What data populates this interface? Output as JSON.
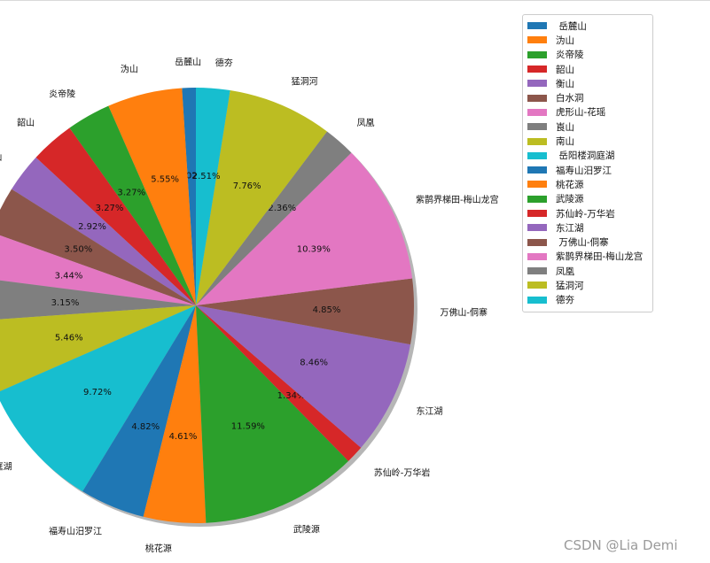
{
  "chart_data": {
    "type": "pie",
    "labels": [
      "岳麓山",
      "沩山",
      "炎帝陵",
      "韶山",
      "衡山",
      "白水洞",
      "虎形山-花瑶",
      "崀山",
      "南山",
      "岳阳楼洞庭湖",
      "福寿山汨罗江",
      "桃花源",
      "武陵源",
      "苏仙岭-万华岩",
      "东江湖",
      "万佛山-侗寨",
      "紫鹊界梯田-梅山龙宫",
      "凤凰",
      "猛洞河",
      "德夯"
    ],
    "legend_labels": [
      " 岳麓山",
      "沩山",
      "炎帝陵",
      "韶山",
      "衡山",
      "白水洞",
      "虎形山-花瑶",
      "崀山",
      "南山",
      " 岳阳楼洞庭湖",
      "福寿山汨罗江",
      "桃花源",
      "武陵源",
      "苏仙岭-万华岩",
      "东江湖",
      " 万佛山-侗寨",
      "紫鹊界梯田-梅山龙宫",
      "凤凰",
      "猛洞河",
      "德夯"
    ],
    "values": [
      1.02,
      5.55,
      3.27,
      3.27,
      2.92,
      3.5,
      3.44,
      3.15,
      5.46,
      9.72,
      4.82,
      4.61,
      11.59,
      1.34,
      8.46,
      4.85,
      10.39,
      2.36,
      7.76,
      2.51
    ],
    "pct_labels": [
      "1.02%",
      "5.55%",
      "3.27%",
      "3.27%",
      "2.92%",
      "3.50%",
      "3.44%",
      "3.15%",
      "5.46%",
      "9.72%",
      "4.82%",
      "4.61%",
      "11.59%",
      "1.34%",
      "8.46%",
      "4.85%",
      "10.39%",
      "2.36%",
      "7.76%",
      "2.51%"
    ],
    "colors": [
      "#1f77b4",
      "#ff7f0e",
      "#2ca02c",
      "#d62728",
      "#9467bd",
      "#8c564b",
      "#e377c2",
      "#7f7f7f",
      "#bcbd22",
      "#17becf",
      "#1f77b4",
      "#ff7f0e",
      "#2ca02c",
      "#d62728",
      "#9467bd",
      "#8c564b",
      "#e377c2",
      "#7f7f7f",
      "#bcbd22",
      "#17becf"
    ],
    "start_angle_deg": 90,
    "direction": "counterclockwise",
    "shadow": true,
    "legend_position": "top-right"
  },
  "watermark": "CSDN @Lia Demi"
}
